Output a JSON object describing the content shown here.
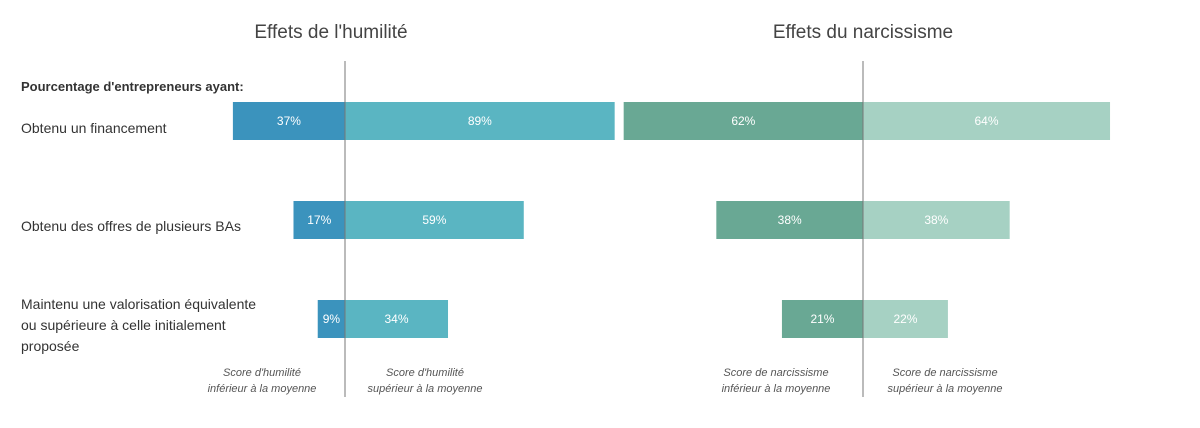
{
  "header_label": "Pourcentage d'entrepreneurs ayant:",
  "row_labels": [
    [
      "Obtenu un financement"
    ],
    [
      "Obtenu des offres de plusieurs BAs"
    ],
    [
      "Maintenu une valorisation équivalente",
      "ou supérieure à celle initialement",
      "proposée"
    ]
  ],
  "colors": {
    "humility_below": "#3b93bd",
    "humility_above": "#5ab5c2",
    "narcissism_below": "#69a894",
    "narcissism_above": "#a6d1c3"
  },
  "chart_data": [
    {
      "type": "bar",
      "orientation": "horizontal-diverging",
      "title": "Effets de l'humilité",
      "categories": [
        "Obtenu un financement",
        "Obtenu des offres de plusieurs BAs",
        "Maintenu une valorisation équivalente ou supérieure à celle initialement proposée"
      ],
      "series": [
        {
          "name": "Score d'humilité inférieur à la moyenne",
          "name_lines": [
            "Score d'humilité",
            "inférieur à la moyenne"
          ],
          "side": "left",
          "values": [
            37,
            17,
            9
          ],
          "labels": [
            "37%",
            "17%",
            "9%"
          ]
        },
        {
          "name": "Score d'humilité supérieur à la moyenne",
          "name_lines": [
            "Score d'humilité",
            "supérieur à la moyenne"
          ],
          "side": "right",
          "values": [
            89,
            59,
            34
          ],
          "labels": [
            "89%",
            "59%",
            "34%"
          ]
        }
      ],
      "unit": "%"
    },
    {
      "type": "bar",
      "orientation": "horizontal-diverging",
      "title": "Effets du narcissisme",
      "categories": [
        "Obtenu un financement",
        "Obtenu des offres de plusieurs BAs",
        "Maintenu une valorisation équivalente ou supérieure à celle initialement proposée"
      ],
      "series": [
        {
          "name": "Score de narcissisme inférieur à la moyenne",
          "name_lines": [
            "Score de narcissisme",
            "inférieur à la moyenne"
          ],
          "side": "left",
          "values": [
            62,
            38,
            21
          ],
          "labels": [
            "62%",
            "38%",
            "21%"
          ]
        },
        {
          "name": "Score de narcissisme supérieur à la moyenne",
          "name_lines": [
            "Score de narcissisme",
            "supérieur à la moyenne"
          ],
          "side": "right",
          "values": [
            64,
            38,
            22
          ],
          "labels": [
            "64%",
            "38%",
            "22%"
          ]
        }
      ],
      "unit": "%"
    }
  ]
}
